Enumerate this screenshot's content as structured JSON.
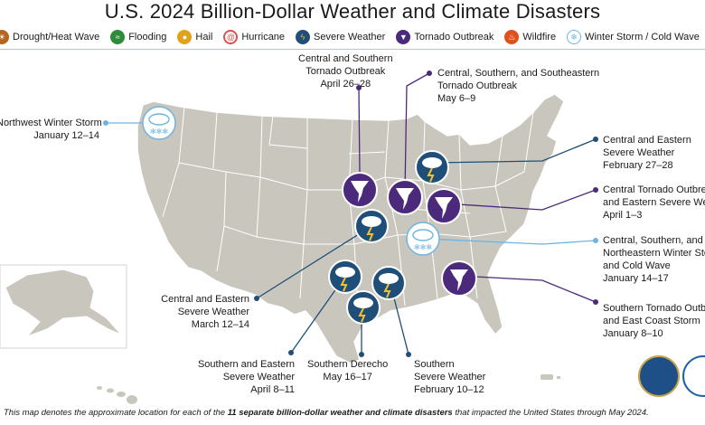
{
  "title": "U.S. 2024 Billion-Dollar Weather and Climate Disasters",
  "legend": [
    {
      "label": "Drought/Heat Wave",
      "icon": "drought-heat-icon",
      "color": "#b5651d"
    },
    {
      "label": "Flooding",
      "icon": "flooding-icon",
      "color": "#2e8b3a"
    },
    {
      "label": "Hail",
      "icon": "hail-icon",
      "color": "#e0a21c"
    },
    {
      "label": "Hurricane",
      "icon": "hurricane-icon",
      "color": "#d9534f"
    },
    {
      "label": "Severe Weather",
      "icon": "severe-weather-icon",
      "color": "#1f4e79"
    },
    {
      "label": "Tornado Outbreak",
      "icon": "tornado-icon",
      "color": "#4b2a7b"
    },
    {
      "label": "Wildfire",
      "icon": "wildfire-icon",
      "color": "#e0501c"
    },
    {
      "label": "Winter Storm / Cold Wave",
      "icon": "winter-storm-icon",
      "color": "#6cb4e4"
    }
  ],
  "events": [
    {
      "name": "Central and Southern Tornado Outbreak",
      "lines": [
        "Central and Southern",
        "Tornado Outbreak",
        "April 26–28"
      ],
      "type": "tornado"
    },
    {
      "name": "Central, Southern, and Southeastern Tornado Outbreak",
      "lines": [
        "Central, Southern, and Southeastern",
        "Tornado Outbreak",
        "May 6–9"
      ],
      "type": "tornado"
    },
    {
      "name": "Northwest Winter Storm",
      "lines": [
        "Northwest Winter Storm",
        "January 12–14"
      ],
      "type": "winter"
    },
    {
      "name": "Central and Eastern Severe Weather (Feb)",
      "lines": [
        "Central and Eastern",
        "Severe Weather",
        "February 27–28"
      ],
      "type": "severe"
    },
    {
      "name": "Central Tornado Outbreak and Eastern Severe Weather",
      "lines": [
        "Central Tornado Outbreak",
        "and Eastern Severe Weather",
        "April 1–3"
      ],
      "type": "tornado"
    },
    {
      "name": "Central, Southern, and Northeastern Winter Storm and Cold Wave",
      "lines": [
        "Central, Southern, and",
        "Northeastern Winter Storm",
        "and Cold Wave",
        "January 14–17"
      ],
      "type": "winter"
    },
    {
      "name": "Southern Tornado Outbreak and East Coast Storm",
      "lines": [
        "Southern Tornado Outbreak",
        "and East Coast Storm",
        "January 8–10"
      ],
      "type": "tornado"
    },
    {
      "name": "Central and Eastern Severe Weather (Mar)",
      "lines": [
        "Central and Eastern",
        "Severe Weather",
        "March 12–14"
      ],
      "type": "severe"
    },
    {
      "name": "Southern and Eastern Severe Weather",
      "lines": [
        "Southern and Eastern",
        "Severe Weather",
        "April 8–11"
      ],
      "type": "severe"
    },
    {
      "name": "Southern Derecho",
      "lines": [
        "Southern Derecho",
        "May 16–17"
      ],
      "type": "severe"
    },
    {
      "name": "Southern Severe Weather",
      "lines": [
        "Southern",
        "Severe Weather",
        "February 10–12"
      ],
      "type": "severe"
    }
  ],
  "footnote": {
    "prefix": "This map denotes the approximate location for each of the ",
    "bold": "11 separate billion-dollar weather and climate disasters",
    "suffix": " that impacted the United States through May 2024."
  },
  "colors": {
    "land": "#c9c6bd",
    "state_border": "#ffffff",
    "tornado": "#4b2a7b",
    "severe": "#1f4e79",
    "winter": "#6cb4e4"
  }
}
